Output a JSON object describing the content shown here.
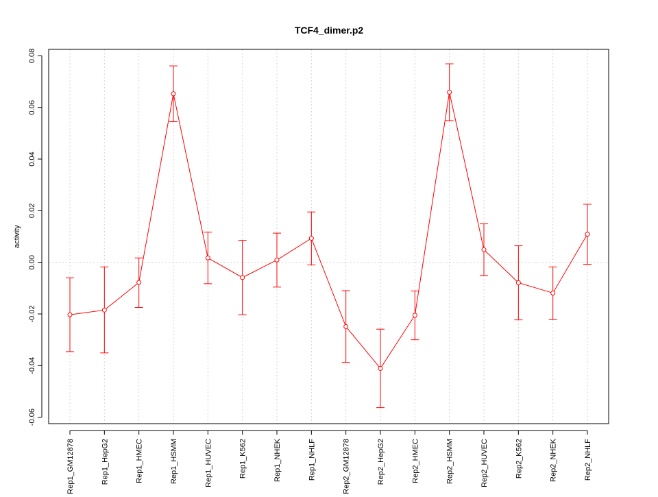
{
  "chart_data": {
    "type": "line",
    "title": "TCF4_dimer.p2",
    "xlabel": "",
    "ylabel": "activity",
    "categories": [
      "Rep1_GM12878",
      "Rep1_HepG2",
      "Rep1_HMEC",
      "Rep1_HSMM",
      "Rep1_HUVEC",
      "Rep1_K562",
      "Rep1_NHEK",
      "Rep1_NHLF",
      "Rep2_GM12878",
      "Rep2_HepG2",
      "Rep2_HMEC",
      "Rep2_HSMM",
      "Rep2_HUVEC",
      "Rep2_K562",
      "Rep2_NHEK",
      "Rep2_NHLF"
    ],
    "values": [
      -0.0203,
      -0.0185,
      -0.0078,
      0.0653,
      0.0017,
      -0.0059,
      0.0009,
      0.0093,
      -0.0249,
      -0.0411,
      -0.0205,
      0.0659,
      0.0049,
      -0.0079,
      -0.0119,
      0.0109
    ],
    "error_upper": [
      -0.006,
      -0.0018,
      0.0017,
      0.0761,
      0.0117,
      0.0085,
      0.0113,
      0.0195,
      -0.011,
      -0.0259,
      -0.0111,
      0.0769,
      0.0149,
      0.0064,
      -0.0018,
      0.0225
    ],
    "error_lower": [
      -0.0346,
      -0.0351,
      -0.0175,
      0.0545,
      -0.0083,
      -0.0203,
      -0.0096,
      -0.001,
      -0.0388,
      -0.0563,
      -0.03,
      0.0549,
      -0.0051,
      -0.0223,
      -0.0222,
      -0.0008
    ],
    "yticks": [
      -0.06,
      -0.04,
      -0.02,
      0.0,
      0.02,
      0.04,
      0.06,
      0.08
    ],
    "ytick_labels": [
      "-0.06",
      "-0.04",
      "-0.02",
      "0.00",
      "0.02",
      "0.04",
      "0.06",
      "0.08"
    ],
    "ylim": [
      -0.0625,
      0.0825
    ],
    "grid": true,
    "colors": {
      "series": "#ff0000",
      "grid": "#d3d3d3",
      "axis": "#000000"
    }
  }
}
